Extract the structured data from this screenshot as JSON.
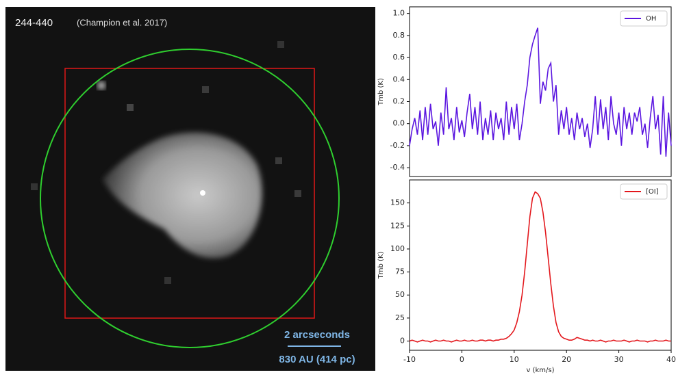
{
  "image": {
    "label": "244-440",
    "citation": "(Champion et al. 2017)",
    "scale_top": "2 arcseconds",
    "scale_bottom": "830 AU (414 pc)"
  },
  "chart_data": [
    {
      "type": "line",
      "ylabel": "Tmb (K)",
      "legend": "upper right",
      "xlim": [
        -10,
        40
      ],
      "ylim": [
        -0.48,
        1.06
      ],
      "yticks": [
        -0.4,
        -0.2,
        {
          "value": 0,
          "label": "0.0"
        },
        0.2,
        0.4,
        0.6,
        0.8,
        {
          "value": 1,
          "label": "1.0"
        }
      ],
      "x": [
        -10,
        -9.5,
        -9,
        -8.5,
        -8,
        -7.5,
        -7,
        -6.5,
        -6,
        -5.5,
        -5,
        -4.5,
        -4,
        -3.5,
        -3,
        -2.5,
        -2,
        -1.5,
        -1,
        -0.5,
        0,
        0.5,
        1,
        1.5,
        2,
        2.5,
        3,
        3.5,
        4,
        4.5,
        5,
        5.5,
        6,
        6.5,
        7,
        7.5,
        8,
        8.5,
        9,
        9.5,
        10,
        10.5,
        11,
        11.5,
        12,
        12.5,
        13,
        13.5,
        14,
        14.5,
        15,
        15.5,
        16,
        16.5,
        17,
        17.5,
        18,
        18.5,
        19,
        19.5,
        20,
        20.5,
        21,
        21.5,
        22,
        22.5,
        23,
        23.5,
        24,
        24.5,
        25,
        25.5,
        26,
        26.5,
        27,
        27.5,
        28,
        28.5,
        29,
        29.5,
        30,
        30.5,
        31,
        31.5,
        32,
        32.5,
        33,
        33.5,
        34,
        34.5,
        35,
        35.5,
        36,
        36.5,
        37,
        37.5,
        38,
        38.5,
        39,
        39.5,
        40
      ],
      "series": [
        {
          "name": "OH",
          "color": "#5b16e0",
          "values": [
            -0.2,
            -0.05,
            0.05,
            -0.1,
            0.12,
            -0.15,
            0.15,
            -0.1,
            0.18,
            -0.05,
            0.02,
            -0.2,
            0.1,
            -0.1,
            0.33,
            -0.05,
            0.05,
            -0.15,
            0.15,
            -0.08,
            0.03,
            -0.12,
            0.1,
            0.27,
            -0.05,
            0.15,
            -0.1,
            0.2,
            -0.15,
            0.05,
            -0.1,
            0.12,
            -0.15,
            0.1,
            -0.05,
            0.05,
            -0.15,
            0.2,
            -0.1,
            0.15,
            -0.05,
            0.18,
            -0.15,
            0,
            0.2,
            0.35,
            0.6,
            0.72,
            0.8,
            0.87,
            0.18,
            0.38,
            0.3,
            0.5,
            0.55,
            0.2,
            0.35,
            -0.1,
            0.12,
            -0.05,
            0.15,
            -0.1,
            0.05,
            -0.15,
            0.1,
            -0.05,
            0.05,
            -0.12,
            0,
            -0.22,
            -0.05,
            0.25,
            -0.1,
            0.22,
            -0.05,
            0.15,
            -0.15,
            0.25,
            0,
            -0.1,
            0.1,
            -0.2,
            0.15,
            -0.05,
            0.1,
            -0.1,
            0.1,
            0.02,
            0.15,
            -0.1,
            0,
            -0.22,
            0.05,
            0.25,
            -0.05,
            0.08,
            -0.28,
            0.25,
            -0.3,
            0.1,
            -0.2
          ]
        }
      ]
    },
    {
      "type": "line",
      "ylabel": "Tmb (K)",
      "xlabel": "v (km/s)",
      "legend": "upper right",
      "xlim": [
        -10,
        40
      ],
      "xticks": [
        -10,
        0,
        10,
        20,
        30,
        40
      ],
      "ylim": [
        -10,
        175
      ],
      "yticks": [
        0,
        25,
        50,
        75,
        100,
        125,
        150
      ],
      "x": [
        -10,
        -9.5,
        -9,
        -8.5,
        -8,
        -7.5,
        -7,
        -6.5,
        -6,
        -5.5,
        -5,
        -4.5,
        -4,
        -3.5,
        -3,
        -2.5,
        -2,
        -1.5,
        -1,
        -0.5,
        0,
        0.5,
        1,
        1.5,
        2,
        2.5,
        3,
        3.5,
        4,
        4.5,
        5,
        5.5,
        6,
        6.5,
        7,
        7.5,
        8,
        8.5,
        9,
        9.5,
        10,
        10.5,
        11,
        11.5,
        12,
        12.5,
        13,
        13.5,
        14,
        14.5,
        15,
        15.5,
        16,
        16.5,
        17,
        17.5,
        18,
        18.5,
        19,
        19.5,
        20,
        20.5,
        21,
        21.5,
        22,
        22.5,
        23,
        23.5,
        24,
        24.5,
        25,
        25.5,
        26,
        26.5,
        27,
        27.5,
        28,
        28.5,
        29,
        29.5,
        30,
        30.5,
        31,
        31.5,
        32,
        32.5,
        33,
        33.5,
        34,
        34.5,
        35,
        35.5,
        36,
        36.5,
        37,
        37.5,
        38,
        38.5,
        39,
        39.5,
        40
      ],
      "series": [
        {
          "name": "[OI]",
          "color": "#e3171c",
          "values": [
            0,
            1,
            0,
            -1,
            0,
            1,
            0,
            0,
            -1,
            0,
            1,
            0,
            0,
            1,
            0,
            0,
            -1,
            0,
            1,
            0,
            0,
            1,
            0,
            0,
            1,
            0,
            0,
            1,
            1,
            0,
            1,
            1,
            0,
            1,
            1,
            2,
            2,
            3,
            5,
            8,
            12,
            20,
            32,
            50,
            75,
            105,
            135,
            155,
            162,
            160,
            155,
            140,
            118,
            90,
            62,
            38,
            20,
            10,
            5,
            3,
            2,
            1,
            1,
            2,
            4,
            3,
            2,
            1,
            1,
            0,
            1,
            0,
            0,
            1,
            0,
            -1,
            0,
            0,
            1,
            0,
            0,
            0,
            1,
            0,
            -1,
            0,
            0,
            1,
            0,
            0,
            0,
            -1,
            0,
            0,
            1,
            0,
            0,
            0,
            1,
            0,
            0
          ]
        }
      ]
    }
  ]
}
